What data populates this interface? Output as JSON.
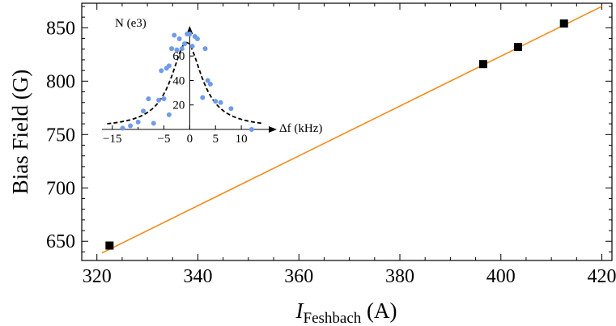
{
  "chart_data": [
    {
      "type": "scatter",
      "role": "main",
      "xlabel_main": "I",
      "xlabel_sub": "Feshbach",
      "xlabel_unit": " (A)",
      "ylabel": "Bias Field (G)",
      "xlim": [
        317,
        422
      ],
      "ylim": [
        632,
        873
      ],
      "xticks": [
        320,
        340,
        360,
        380,
        400,
        420
      ],
      "xtick_labels": [
        "320",
        "340",
        "360",
        "380",
        "400",
        "420"
      ],
      "yticks": [
        650,
        700,
        750,
        800,
        850
      ],
      "ytick_labels": [
        "650",
        "700",
        "750",
        "800",
        "850"
      ],
      "series": [
        {
          "kind": "points",
          "marker": "square",
          "color": "#000000",
          "x": [
            322.5,
            396.5,
            403.4,
            412.5
          ],
          "y": [
            646,
            816,
            832,
            854
          ]
        },
        {
          "kind": "fit-line",
          "color": "#f28c1c",
          "x": [
            321,
            420
          ],
          "y": [
            639,
            870
          ]
        }
      ],
      "grid": false
    },
    {
      "type": "scatter",
      "role": "inset",
      "xlabel": "Δf (kHz)",
      "ylabel": "N (e3)",
      "xlim": [
        -17,
        15
      ],
      "ylim": [
        0,
        78
      ],
      "xticks": [
        -15,
        -5,
        0,
        5,
        10
      ],
      "xtick_labels": [
        "−15",
        "−5",
        "0",
        "5",
        "10"
      ],
      "xticks_minor": [
        -10
      ],
      "yticks": [
        20,
        40,
        60
      ],
      "ytick_labels": [
        "20",
        "40",
        "60"
      ],
      "series": [
        {
          "kind": "points",
          "marker": "circle",
          "color": "#6f9be8",
          "x": [
            -13,
            -11.5,
            -10,
            -9,
            -8,
            -7,
            -6,
            -5.5,
            -5,
            -4.5,
            -4,
            -4,
            -3.5,
            -3,
            -2.5,
            -2,
            -1.5,
            -1,
            -0.5,
            0,
            0.5,
            1,
            1.5,
            2.5,
            3,
            3.5,
            4,
            5,
            6,
            8,
            12
          ],
          "y": [
            1,
            3,
            6,
            15,
            25,
            5,
            24,
            48,
            25,
            50,
            12,
            52,
            66,
            77,
            65,
            74,
            66,
            70,
            78,
            78,
            68,
            76,
            74,
            26,
            66,
            40,
            37,
            23,
            22,
            17,
            0
          ]
        },
        {
          "kind": "lorentzian-fit",
          "style": "dashed",
          "color": "#000000",
          "center": -0.6,
          "amplitude": 70,
          "hwhm": 3.6,
          "offset": 1
        }
      ]
    }
  ]
}
